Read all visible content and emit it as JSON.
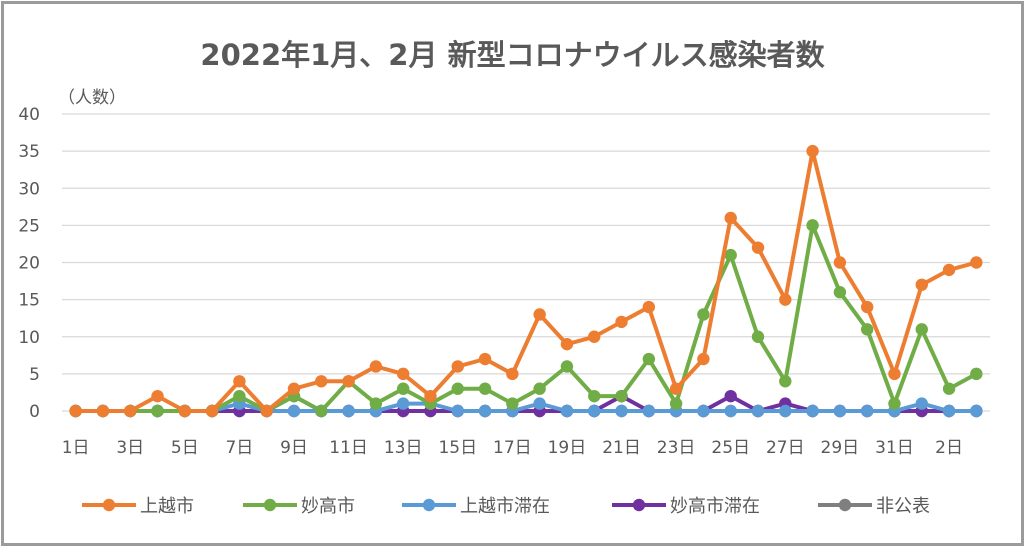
{
  "title": "2022年1月、2月 新型コロナウイルス感染者数",
  "unit_label": "（人数）",
  "colors": {
    "上越市": "#ed7d31",
    "妙高市": "#70ad47",
    "上越市滞在": "#5b9bd5",
    "妙高市滞在": "#7030a0",
    "非公表": "#7f7f7f",
    "grid": "#d9d9d9",
    "text": "#595959"
  },
  "chart_data": {
    "type": "line",
    "title": "2022年1月、2月 新型コロナウイルス感染者数",
    "ylabel": "（人数）",
    "xlabel": "",
    "ylim": [
      0,
      40
    ],
    "yticks": [
      0,
      5,
      10,
      15,
      20,
      25,
      30,
      35,
      40
    ],
    "grid": true,
    "legend": "bottom",
    "x": [
      "1/1",
      "1/2",
      "1/3",
      "1/4",
      "1/5",
      "1/6",
      "1/7",
      "1/8",
      "1/9",
      "1/10",
      "1/11",
      "1/12",
      "1/13",
      "1/14",
      "1/15",
      "1/16",
      "1/17",
      "1/18",
      "1/19",
      "1/20",
      "1/21",
      "1/22",
      "1/23",
      "1/24",
      "1/25",
      "1/26",
      "1/27",
      "1/28",
      "1/29",
      "1/30",
      "1/31",
      "2/1",
      "2/2",
      "2/3"
    ],
    "x_tick_labels": [
      "1日",
      "",
      "3日",
      "",
      "5日",
      "",
      "7日",
      "",
      "9日",
      "",
      "11日",
      "",
      "13日",
      "",
      "15日",
      "",
      "17日",
      "",
      "19日",
      "",
      "21日",
      "",
      "23日",
      "",
      "25日",
      "",
      "27日",
      "",
      "29日",
      "",
      "31日",
      "",
      "2日",
      ""
    ],
    "series": [
      {
        "name": "上越市",
        "values": [
          0,
          0,
          0,
          2,
          0,
          0,
          4,
          0,
          3,
          4,
          4,
          6,
          5,
          2,
          6,
          7,
          5,
          13,
          9,
          10,
          12,
          14,
          3,
          7,
          26,
          22,
          15,
          35,
          20,
          14,
          5,
          17,
          19,
          20
        ]
      },
      {
        "name": "妙高市",
        "values": [
          0,
          0,
          0,
          0,
          0,
          0,
          2,
          0,
          2,
          0,
          4,
          1,
          3,
          1,
          3,
          3,
          1,
          3,
          6,
          2,
          2,
          7,
          1,
          13,
          21,
          10,
          4,
          25,
          16,
          11,
          1,
          11,
          3,
          5
        ]
      },
      {
        "name": "上越市滞在",
        "values": [
          0,
          0,
          0,
          0,
          0,
          0,
          1,
          0,
          0,
          0,
          0,
          0,
          1,
          1,
          0,
          0,
          0,
          1,
          0,
          0,
          0,
          0,
          0,
          0,
          0,
          0,
          0,
          0,
          0,
          0,
          0,
          1,
          0,
          0
        ]
      },
      {
        "name": "妙高市滞在",
        "values": [
          0,
          0,
          0,
          0,
          0,
          0,
          0,
          0,
          0,
          0,
          0,
          0,
          0,
          0,
          0,
          0,
          0,
          0,
          0,
          0,
          2,
          0,
          0,
          0,
          2,
          0,
          1,
          0,
          0,
          0,
          0,
          0,
          0,
          0
        ]
      },
      {
        "name": "非公表",
        "values": [
          0,
          0,
          0,
          0,
          0,
          0,
          0,
          0,
          2,
          0,
          0,
          0,
          0,
          0,
          0,
          0,
          0,
          0,
          0,
          0,
          0,
          0,
          0,
          0,
          0,
          0,
          0,
          0,
          0,
          0,
          0,
          0,
          0,
          0
        ]
      }
    ]
  }
}
